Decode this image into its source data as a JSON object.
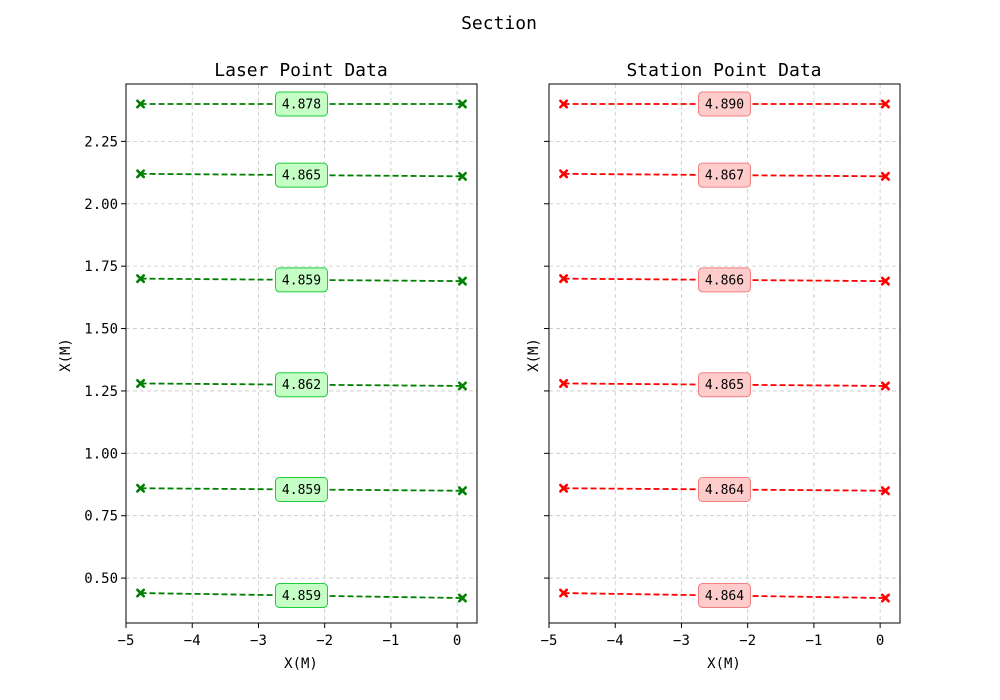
{
  "title": "Section",
  "chart_data": [
    {
      "type": "line",
      "title": "Laser Point Data",
      "xlabel": "X(M)",
      "ylabel": "X(M)",
      "color": "#008000",
      "box_fill": "#c6ffc6",
      "box_edge": "#1ccc3a",
      "xlim": [
        -5.0,
        0.3
      ],
      "ylim": [
        0.32,
        2.48
      ],
      "xticks": [
        -5,
        -4,
        -3,
        -2,
        -1,
        0
      ],
      "xtick_labels": [
        "−5",
        "−4",
        "−3",
        "−2",
        "−1",
        "0"
      ],
      "yticks": [
        0.5,
        0.75,
        1.0,
        1.25,
        1.5,
        1.75,
        2.0,
        2.25
      ],
      "ytick_labels": [
        "0.50",
        "0.75",
        "1.00",
        "1.25",
        "1.50",
        "1.75",
        "2.00",
        "2.25"
      ],
      "grid": true,
      "series": [
        {
          "x": [
            -4.78,
            0.08
          ],
          "y": [
            0.44,
            0.42
          ],
          "label": "4.859"
        },
        {
          "x": [
            -4.78,
            0.08
          ],
          "y": [
            0.86,
            0.85
          ],
          "label": "4.859"
        },
        {
          "x": [
            -4.78,
            0.08
          ],
          "y": [
            1.28,
            1.27
          ],
          "label": "4.862"
        },
        {
          "x": [
            -4.78,
            0.08
          ],
          "y": [
            1.7,
            1.69
          ],
          "label": "4.859"
        },
        {
          "x": [
            -4.78,
            0.08
          ],
          "y": [
            2.12,
            2.11
          ],
          "label": "4.865"
        },
        {
          "x": [
            -4.78,
            0.08
          ],
          "y": [
            2.4,
            2.4
          ],
          "label": "4.878"
        }
      ]
    },
    {
      "type": "line",
      "title": "Station Point Data",
      "xlabel": "X(M)",
      "ylabel": "X(M)",
      "color": "#ff0000",
      "box_fill": "#ffcccc",
      "box_edge": "#f08080",
      "xlim": [
        -5.0,
        0.3
      ],
      "ylim": [
        0.32,
        2.48
      ],
      "xticks": [
        -5,
        -4,
        -3,
        -2,
        -1,
        0
      ],
      "xtick_labels": [
        "−5",
        "−4",
        "−3",
        "−2",
        "−1",
        "0"
      ],
      "yticks": [
        0.5,
        0.75,
        1.0,
        1.25,
        1.5,
        1.75,
        2.0,
        2.25
      ],
      "ytick_labels": [],
      "grid": true,
      "series": [
        {
          "x": [
            -4.78,
            0.08
          ],
          "y": [
            0.44,
            0.42
          ],
          "label": "4.864"
        },
        {
          "x": [
            -4.78,
            0.08
          ],
          "y": [
            0.86,
            0.85
          ],
          "label": "4.864"
        },
        {
          "x": [
            -4.78,
            0.08
          ],
          "y": [
            1.28,
            1.27
          ],
          "label": "4.865"
        },
        {
          "x": [
            -4.78,
            0.08
          ],
          "y": [
            1.7,
            1.69
          ],
          "label": "4.866"
        },
        {
          "x": [
            -4.78,
            0.08
          ],
          "y": [
            2.12,
            2.11
          ],
          "label": "4.867"
        },
        {
          "x": [
            -4.78,
            0.08
          ],
          "y": [
            2.4,
            2.4
          ],
          "label": "4.890"
        }
      ]
    }
  ]
}
